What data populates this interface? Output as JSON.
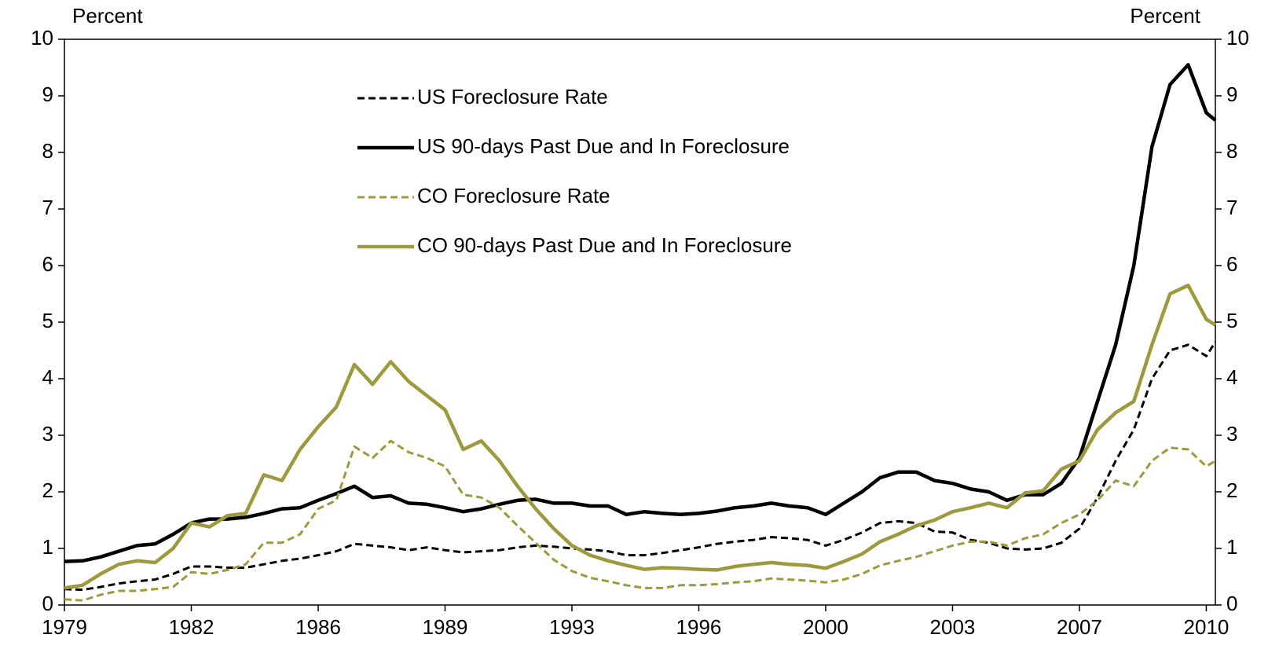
{
  "chart_data": {
    "type": "line",
    "y_label": "Percent",
    "y2_label": "Percent",
    "x": [
      1979,
      1979.5,
      1980,
      1980.5,
      1981,
      1981.5,
      1982,
      1982.5,
      1983,
      1983.5,
      1984,
      1984.5,
      1985,
      1985.5,
      1986,
      1986.5,
      1987,
      1987.5,
      1988,
      1988.5,
      1989,
      1989.5,
      1990,
      1990.5,
      1991,
      1991.5,
      1992,
      1992.5,
      1993,
      1993.5,
      1994,
      1994.5,
      1995,
      1995.5,
      1996,
      1996.5,
      1997,
      1997.5,
      1998,
      1998.5,
      1999,
      1999.5,
      2000,
      2000.5,
      2001,
      2001.5,
      2002,
      2002.5,
      2003,
      2003.5,
      2004,
      2004.5,
      2005,
      2005.5,
      2006,
      2006.5,
      2007,
      2007.5,
      2008,
      2008.5,
      2009,
      2009.5,
      2010,
      2010.5,
      2010.75
    ],
    "series": [
      {
        "name": "US Foreclosure Rate",
        "color": "#000000",
        "style": "dashed",
        "values": [
          0.28,
          0.27,
          0.32,
          0.38,
          0.42,
          0.45,
          0.55,
          0.68,
          0.68,
          0.66,
          0.66,
          0.72,
          0.78,
          0.82,
          0.88,
          0.95,
          1.08,
          1.05,
          1.02,
          0.97,
          1.02,
          0.97,
          0.93,
          0.95,
          0.97,
          1.02,
          1.05,
          1.03,
          1.0,
          0.98,
          0.95,
          0.88,
          0.88,
          0.92,
          0.97,
          1.02,
          1.08,
          1.12,
          1.15,
          1.2,
          1.18,
          1.15,
          1.05,
          1.15,
          1.28,
          1.45,
          1.48,
          1.45,
          1.3,
          1.28,
          1.15,
          1.1,
          1.0,
          0.98,
          1.0,
          1.1,
          1.35,
          1.9,
          2.55,
          3.1,
          4.0,
          4.5,
          4.6,
          4.4,
          4.65
        ]
      },
      {
        "name": "US 90-days Past Due and In Foreclosure",
        "color": "#000000",
        "style": "solid",
        "values": [
          0.77,
          0.78,
          0.85,
          0.95,
          1.05,
          1.08,
          1.25,
          1.45,
          1.52,
          1.52,
          1.55,
          1.62,
          1.7,
          1.72,
          1.85,
          1.97,
          2.1,
          1.9,
          1.93,
          1.8,
          1.78,
          1.72,
          1.65,
          1.7,
          1.78,
          1.85,
          1.87,
          1.8,
          1.8,
          1.75,
          1.75,
          1.6,
          1.65,
          1.62,
          1.6,
          1.62,
          1.66,
          1.72,
          1.75,
          1.8,
          1.75,
          1.72,
          1.6,
          1.8,
          2.0,
          2.25,
          2.35,
          2.35,
          2.2,
          2.15,
          2.05,
          2.0,
          1.85,
          1.95,
          1.95,
          2.15,
          2.6,
          3.6,
          4.6,
          6.0,
          8.1,
          9.2,
          9.55,
          8.7,
          8.57
        ]
      },
      {
        "name": "CO Foreclosure Rate",
        "color": "#9c9a3c",
        "style": "dashed",
        "values": [
          0.1,
          0.08,
          0.18,
          0.25,
          0.25,
          0.28,
          0.32,
          0.58,
          0.55,
          0.62,
          0.72,
          1.1,
          1.1,
          1.25,
          1.7,
          1.85,
          2.8,
          2.6,
          2.9,
          2.7,
          2.6,
          2.45,
          1.95,
          1.9,
          1.72,
          1.4,
          1.1,
          0.8,
          0.6,
          0.48,
          0.42,
          0.35,
          0.3,
          0.3,
          0.35,
          0.35,
          0.37,
          0.4,
          0.42,
          0.47,
          0.45,
          0.43,
          0.4,
          0.45,
          0.55,
          0.7,
          0.78,
          0.85,
          0.95,
          1.05,
          1.12,
          1.12,
          1.05,
          1.18,
          1.25,
          1.45,
          1.6,
          1.85,
          2.2,
          2.1,
          2.55,
          2.78,
          2.75,
          2.45,
          2.55
        ]
      },
      {
        "name": "CO 90-days Past Due and In Foreclosure",
        "color": "#9c9a3c",
        "style": "solid",
        "values": [
          0.3,
          0.35,
          0.55,
          0.72,
          0.78,
          0.75,
          1.0,
          1.45,
          1.38,
          1.58,
          1.62,
          2.3,
          2.2,
          2.75,
          3.15,
          3.5,
          4.25,
          3.9,
          4.3,
          3.95,
          3.7,
          3.45,
          2.75,
          2.9,
          2.55,
          2.1,
          1.7,
          1.35,
          1.05,
          0.88,
          0.78,
          0.7,
          0.63,
          0.66,
          0.65,
          0.63,
          0.62,
          0.68,
          0.72,
          0.75,
          0.72,
          0.7,
          0.65,
          0.77,
          0.9,
          1.12,
          1.25,
          1.4,
          1.5,
          1.65,
          1.72,
          1.8,
          1.72,
          1.98,
          2.02,
          2.4,
          2.55,
          3.1,
          3.4,
          3.6,
          4.6,
          5.5,
          5.65,
          5.05,
          4.95
        ]
      }
    ],
    "xlim": [
      1979,
      2010.75
    ],
    "xticks": [
      1979,
      {
        "value": 1982.5,
        "label": "1982"
      },
      1986,
      {
        "value": 1989.5,
        "label": "1989"
      },
      1993,
      {
        "value": 1996.5,
        "label": "1996"
      },
      2000,
      {
        "value": 2003.5,
        "label": "2003"
      },
      2007,
      {
        "value": 2010.5,
        "label": "2010"
      }
    ],
    "ylim": [
      0,
      10
    ],
    "yticks": [
      0,
      1,
      2,
      3,
      4,
      5,
      6,
      7,
      8,
      9,
      10
    ],
    "y2lim": [
      0,
      10
    ],
    "y2ticks": [
      0,
      1,
      2,
      3,
      4,
      5,
      6,
      7,
      8,
      9,
      10
    ],
    "grid": false,
    "legend": "upper center"
  }
}
